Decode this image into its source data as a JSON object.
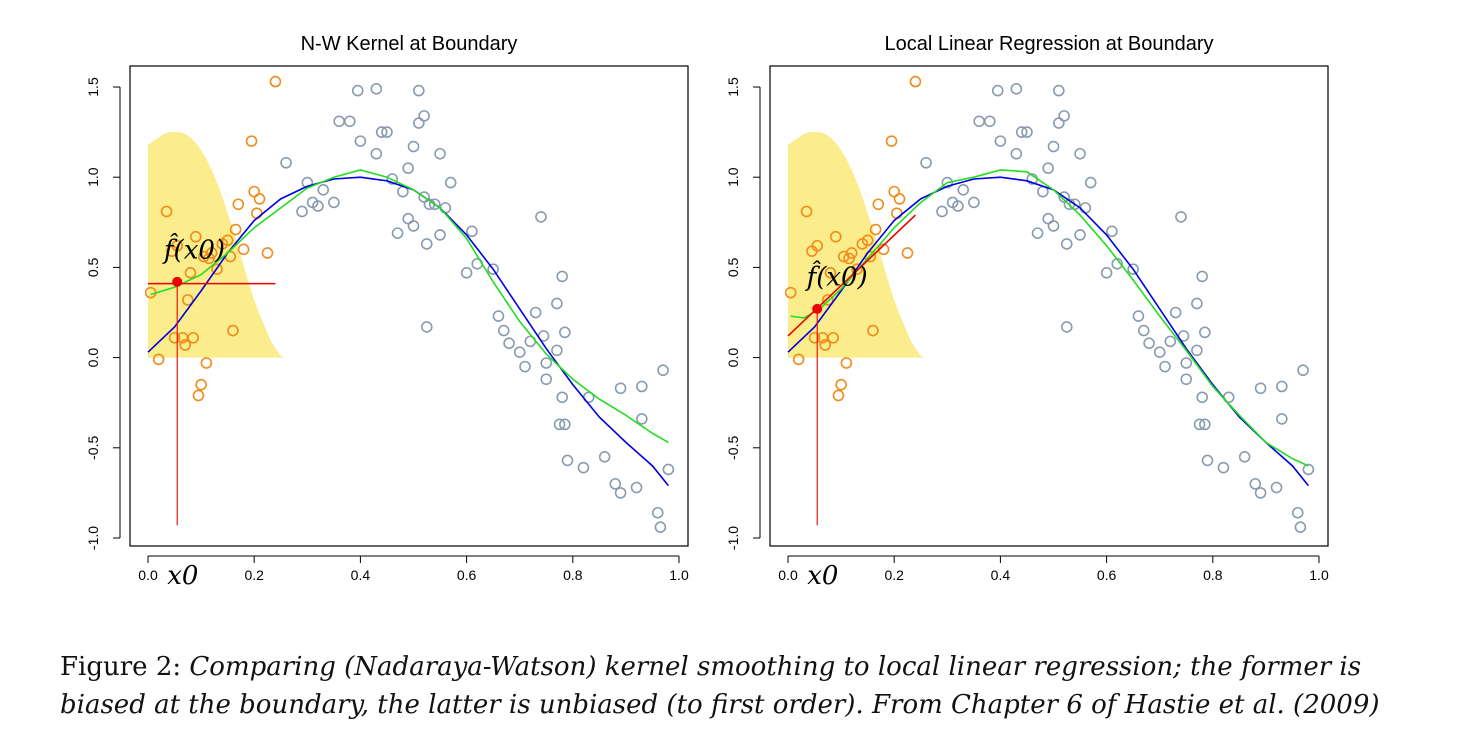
{
  "caption": {
    "label": "Figure 2:",
    "text": "Comparing (Nadaraya-Watson) kernel smoothing to local linear regression; the former is biased at the boundary, the latter is unbiased (to first order). From Chapter 6 of Hastie et al. (2009)"
  },
  "chart_data": [
    {
      "type": "scatter",
      "title": "N-W Kernel at Boundary",
      "xlim": [
        0.0,
        1.0
      ],
      "ylim": [
        -1.0,
        1.5
      ],
      "xticks": [
        "0.0",
        "0.2",
        "0.4",
        "0.6",
        "0.8",
        "1.0"
      ],
      "yticks": [
        "-1.0",
        "-0.5",
        "0.0",
        "0.5",
        "1.0",
        "1.5"
      ],
      "x0_label": "x0",
      "fhat_label": "f̂(x0)",
      "x0": 0.055,
      "fhat_x0": 0.42,
      "fit_segment": [
        [
          0.0,
          0.41
        ],
        [
          0.24,
          0.41
        ]
      ],
      "colors": {
        "window": "#f08c19",
        "other": "#8a9bb0",
        "kernel": "#fbec8c",
        "truth": "#0000e0",
        "smooth": "#22dd22",
        "fit": "#ee0000"
      }
    },
    {
      "type": "scatter",
      "title": "Local Linear Regression at Boundary",
      "xlim": [
        0.0,
        1.0
      ],
      "ylim": [
        -1.0,
        1.5
      ],
      "xticks": [
        "0.0",
        "0.2",
        "0.4",
        "0.6",
        "0.8",
        "1.0"
      ],
      "yticks": [
        "-1.0",
        "-0.5",
        "0.0",
        "0.5",
        "1.0",
        "1.5"
      ],
      "x0_label": "x0",
      "fhat_label": "f̂(x0)",
      "x0": 0.055,
      "fhat_x0": 0.27,
      "fit_segment": [
        [
          0.0,
          0.12
        ],
        [
          0.24,
          0.79
        ]
      ],
      "colors": {
        "window": "#f08c19",
        "other": "#8a9bb0",
        "kernel": "#fbec8c",
        "truth": "#0000e0",
        "smooth": "#22dd22",
        "fit": "#ee0000"
      }
    }
  ],
  "shared": {
    "points": [
      [
        0.005,
        0.36
      ],
      [
        0.02,
        -0.01
      ],
      [
        0.035,
        0.81
      ],
      [
        0.045,
        0.59
      ],
      [
        0.05,
        0.11
      ],
      [
        0.055,
        0.62
      ],
      [
        0.065,
        0.11
      ],
      [
        0.07,
        0.07
      ],
      [
        0.075,
        0.32
      ],
      [
        0.08,
        0.47
      ],
      [
        0.085,
        0.11
      ],
      [
        0.09,
        0.67
      ],
      [
        0.095,
        -0.21
      ],
      [
        0.1,
        -0.15
      ],
      [
        0.105,
        0.56
      ],
      [
        0.11,
        -0.03
      ],
      [
        0.115,
        0.55
      ],
      [
        0.12,
        0.58
      ],
      [
        0.13,
        0.49
      ],
      [
        0.14,
        0.63
      ],
      [
        0.15,
        0.65
      ],
      [
        0.155,
        0.56
      ],
      [
        0.16,
        0.15
      ],
      [
        0.165,
        0.71
      ],
      [
        0.17,
        0.85
      ],
      [
        0.18,
        0.6
      ],
      [
        0.195,
        1.2
      ],
      [
        0.2,
        0.92
      ],
      [
        0.205,
        0.8
      ],
      [
        0.21,
        0.88
      ],
      [
        0.225,
        0.58
      ],
      [
        0.24,
        1.53
      ],
      [
        0.26,
        1.08
      ],
      [
        0.29,
        0.81
      ],
      [
        0.3,
        0.97
      ],
      [
        0.31,
        0.86
      ],
      [
        0.32,
        0.84
      ],
      [
        0.33,
        0.93
      ],
      [
        0.35,
        0.86
      ],
      [
        0.36,
        1.31
      ],
      [
        0.38,
        1.31
      ],
      [
        0.395,
        1.48
      ],
      [
        0.4,
        1.2
      ],
      [
        0.43,
        1.49
      ],
      [
        0.43,
        1.13
      ],
      [
        0.44,
        1.25
      ],
      [
        0.45,
        1.25
      ],
      [
        0.46,
        0.99
      ],
      [
        0.47,
        0.69
      ],
      [
        0.48,
        0.92
      ],
      [
        0.49,
        0.77
      ],
      [
        0.49,
        1.05
      ],
      [
        0.5,
        0.73
      ],
      [
        0.5,
        1.17
      ],
      [
        0.51,
        1.48
      ],
      [
        0.51,
        1.3
      ],
      [
        0.52,
        1.34
      ],
      [
        0.52,
        0.89
      ],
      [
        0.525,
        0.63
      ],
      [
        0.525,
        0.17
      ],
      [
        0.53,
        0.85
      ],
      [
        0.54,
        0.85
      ],
      [
        0.55,
        0.68
      ],
      [
        0.55,
        1.13
      ],
      [
        0.56,
        0.83
      ],
      [
        0.57,
        0.97
      ],
      [
        0.6,
        0.47
      ],
      [
        0.61,
        0.7
      ],
      [
        0.62,
        0.52
      ],
      [
        0.65,
        0.49
      ],
      [
        0.66,
        0.23
      ],
      [
        0.67,
        0.15
      ],
      [
        0.68,
        0.08
      ],
      [
        0.7,
        0.03
      ],
      [
        0.71,
        -0.05
      ],
      [
        0.72,
        0.09
      ],
      [
        0.73,
        0.25
      ],
      [
        0.74,
        0.78
      ],
      [
        0.745,
        0.12
      ],
      [
        0.75,
        -0.12
      ],
      [
        0.75,
        -0.03
      ],
      [
        0.77,
        0.3
      ],
      [
        0.77,
        0.04
      ],
      [
        0.78,
        0.45
      ],
      [
        0.78,
        -0.22
      ],
      [
        0.775,
        -0.37
      ],
      [
        0.785,
        -0.37
      ],
      [
        0.785,
        0.14
      ],
      [
        0.79,
        -0.57
      ],
      [
        0.82,
        -0.61
      ],
      [
        0.83,
        -0.22
      ],
      [
        0.86,
        -0.55
      ],
      [
        0.88,
        -0.7
      ],
      [
        0.89,
        -0.75
      ],
      [
        0.89,
        -0.17
      ],
      [
        0.92,
        -0.72
      ],
      [
        0.93,
        -0.34
      ],
      [
        0.93,
        -0.16
      ],
      [
        0.96,
        -0.86
      ],
      [
        0.965,
        -0.94
      ],
      [
        0.97,
        -0.07
      ],
      [
        0.98,
        -0.62
      ]
    ],
    "kernel_curve": [
      [
        0.0,
        1.18
      ],
      [
        0.01,
        1.2
      ],
      [
        0.02,
        1.22
      ],
      [
        0.03,
        1.24
      ],
      [
        0.04,
        1.25
      ],
      [
        0.05,
        1.25
      ],
      [
        0.06,
        1.25
      ],
      [
        0.07,
        1.24
      ],
      [
        0.08,
        1.22
      ],
      [
        0.09,
        1.19
      ],
      [
        0.1,
        1.15
      ],
      [
        0.11,
        1.1
      ],
      [
        0.12,
        1.04
      ],
      [
        0.13,
        0.97
      ],
      [
        0.14,
        0.89
      ],
      [
        0.15,
        0.8
      ],
      [
        0.16,
        0.71
      ],
      [
        0.17,
        0.61
      ],
      [
        0.18,
        0.51
      ],
      [
        0.19,
        0.41
      ],
      [
        0.2,
        0.32
      ],
      [
        0.21,
        0.24
      ],
      [
        0.22,
        0.17
      ],
      [
        0.23,
        0.1
      ],
      [
        0.24,
        0.05
      ],
      [
        0.25,
        0.01
      ],
      [
        0.255,
        0.0
      ]
    ],
    "truth_curve": [
      [
        0.0,
        0.03
      ],
      [
        0.05,
        0.17
      ],
      [
        0.1,
        0.37
      ],
      [
        0.15,
        0.58
      ],
      [
        0.2,
        0.76
      ],
      [
        0.25,
        0.88
      ],
      [
        0.3,
        0.95
      ],
      [
        0.35,
        0.99
      ],
      [
        0.4,
        1.0
      ],
      [
        0.45,
        0.98
      ],
      [
        0.5,
        0.93
      ],
      [
        0.55,
        0.83
      ],
      [
        0.6,
        0.68
      ],
      [
        0.65,
        0.49
      ],
      [
        0.7,
        0.27
      ],
      [
        0.75,
        0.05
      ],
      [
        0.8,
        -0.15
      ],
      [
        0.85,
        -0.33
      ],
      [
        0.9,
        -0.47
      ],
      [
        0.95,
        -0.6
      ],
      [
        0.98,
        -0.71
      ]
    ],
    "smooth_curves": [
      [
        [
          0.005,
          0.35
        ],
        [
          0.05,
          0.39
        ],
        [
          0.1,
          0.46
        ],
        [
          0.15,
          0.58
        ],
        [
          0.2,
          0.72
        ],
        [
          0.25,
          0.83
        ],
        [
          0.3,
          0.94
        ],
        [
          0.35,
          1.0
        ],
        [
          0.4,
          1.04
        ],
        [
          0.45,
          1.0
        ],
        [
          0.5,
          0.93
        ],
        [
          0.55,
          0.83
        ],
        [
          0.6,
          0.66
        ],
        [
          0.65,
          0.42
        ],
        [
          0.7,
          0.2
        ],
        [
          0.75,
          0.02
        ],
        [
          0.8,
          -0.12
        ],
        [
          0.85,
          -0.23
        ],
        [
          0.9,
          -0.32
        ],
        [
          0.95,
          -0.42
        ],
        [
          0.98,
          -0.47
        ]
      ],
      [
        [
          0.005,
          0.23
        ],
        [
          0.03,
          0.22
        ],
        [
          0.06,
          0.27
        ],
        [
          0.1,
          0.38
        ],
        [
          0.15,
          0.55
        ],
        [
          0.2,
          0.72
        ],
        [
          0.25,
          0.86
        ],
        [
          0.3,
          0.97
        ],
        [
          0.35,
          1.0
        ],
        [
          0.4,
          1.04
        ],
        [
          0.45,
          1.03
        ],
        [
          0.5,
          0.93
        ],
        [
          0.55,
          0.79
        ],
        [
          0.6,
          0.62
        ],
        [
          0.65,
          0.43
        ],
        [
          0.7,
          0.23
        ],
        [
          0.75,
          0.04
        ],
        [
          0.8,
          -0.16
        ],
        [
          0.85,
          -0.32
        ],
        [
          0.9,
          -0.47
        ],
        [
          0.95,
          -0.56
        ],
        [
          0.98,
          -0.6
        ]
      ]
    ]
  }
}
